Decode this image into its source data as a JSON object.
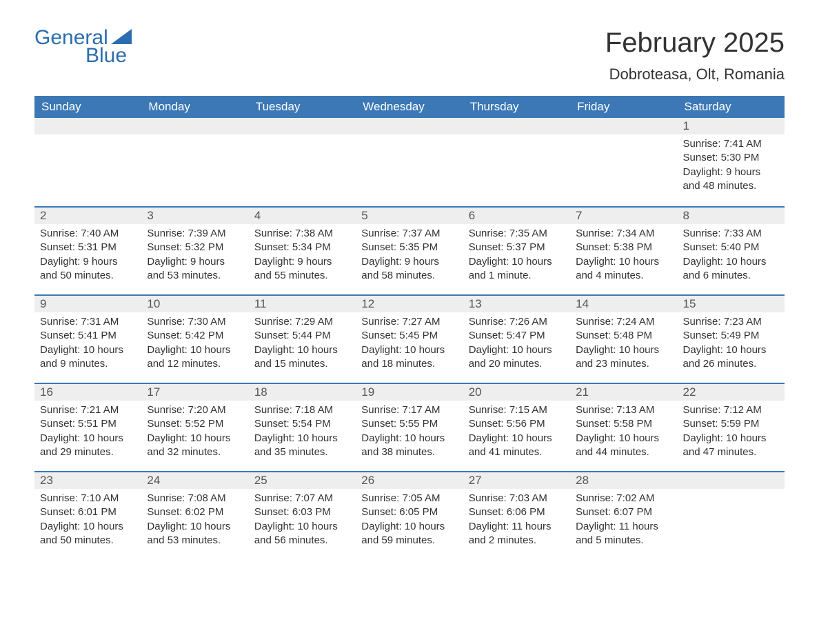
{
  "logo": {
    "word1": "General",
    "word2": "Blue",
    "brand_color": "#2a6db0"
  },
  "title": "February 2025",
  "location": "Dobroteasa, Olt, Romania",
  "colors": {
    "header_bg": "#3b78b5",
    "header_text": "#ffffff",
    "daynum_bg": "#eeeeee",
    "row_rule": "#3b78b5",
    "text": "#333333",
    "background": "#ffffff"
  },
  "weekdays": [
    "Sunday",
    "Monday",
    "Tuesday",
    "Wednesday",
    "Thursday",
    "Friday",
    "Saturday"
  ],
  "weeks": [
    [
      null,
      null,
      null,
      null,
      null,
      null,
      {
        "n": "1",
        "sunrise": "Sunrise: 7:41 AM",
        "sunset": "Sunset: 5:30 PM",
        "daylight1": "Daylight: 9 hours",
        "daylight2": "and 48 minutes."
      }
    ],
    [
      {
        "n": "2",
        "sunrise": "Sunrise: 7:40 AM",
        "sunset": "Sunset: 5:31 PM",
        "daylight1": "Daylight: 9 hours",
        "daylight2": "and 50 minutes."
      },
      {
        "n": "3",
        "sunrise": "Sunrise: 7:39 AM",
        "sunset": "Sunset: 5:32 PM",
        "daylight1": "Daylight: 9 hours",
        "daylight2": "and 53 minutes."
      },
      {
        "n": "4",
        "sunrise": "Sunrise: 7:38 AM",
        "sunset": "Sunset: 5:34 PM",
        "daylight1": "Daylight: 9 hours",
        "daylight2": "and 55 minutes."
      },
      {
        "n": "5",
        "sunrise": "Sunrise: 7:37 AM",
        "sunset": "Sunset: 5:35 PM",
        "daylight1": "Daylight: 9 hours",
        "daylight2": "and 58 minutes."
      },
      {
        "n": "6",
        "sunrise": "Sunrise: 7:35 AM",
        "sunset": "Sunset: 5:37 PM",
        "daylight1": "Daylight: 10 hours",
        "daylight2": "and 1 minute."
      },
      {
        "n": "7",
        "sunrise": "Sunrise: 7:34 AM",
        "sunset": "Sunset: 5:38 PM",
        "daylight1": "Daylight: 10 hours",
        "daylight2": "and 4 minutes."
      },
      {
        "n": "8",
        "sunrise": "Sunrise: 7:33 AM",
        "sunset": "Sunset: 5:40 PM",
        "daylight1": "Daylight: 10 hours",
        "daylight2": "and 6 minutes."
      }
    ],
    [
      {
        "n": "9",
        "sunrise": "Sunrise: 7:31 AM",
        "sunset": "Sunset: 5:41 PM",
        "daylight1": "Daylight: 10 hours",
        "daylight2": "and 9 minutes."
      },
      {
        "n": "10",
        "sunrise": "Sunrise: 7:30 AM",
        "sunset": "Sunset: 5:42 PM",
        "daylight1": "Daylight: 10 hours",
        "daylight2": "and 12 minutes."
      },
      {
        "n": "11",
        "sunrise": "Sunrise: 7:29 AM",
        "sunset": "Sunset: 5:44 PM",
        "daylight1": "Daylight: 10 hours",
        "daylight2": "and 15 minutes."
      },
      {
        "n": "12",
        "sunrise": "Sunrise: 7:27 AM",
        "sunset": "Sunset: 5:45 PM",
        "daylight1": "Daylight: 10 hours",
        "daylight2": "and 18 minutes."
      },
      {
        "n": "13",
        "sunrise": "Sunrise: 7:26 AM",
        "sunset": "Sunset: 5:47 PM",
        "daylight1": "Daylight: 10 hours",
        "daylight2": "and 20 minutes."
      },
      {
        "n": "14",
        "sunrise": "Sunrise: 7:24 AM",
        "sunset": "Sunset: 5:48 PM",
        "daylight1": "Daylight: 10 hours",
        "daylight2": "and 23 minutes."
      },
      {
        "n": "15",
        "sunrise": "Sunrise: 7:23 AM",
        "sunset": "Sunset: 5:49 PM",
        "daylight1": "Daylight: 10 hours",
        "daylight2": "and 26 minutes."
      }
    ],
    [
      {
        "n": "16",
        "sunrise": "Sunrise: 7:21 AM",
        "sunset": "Sunset: 5:51 PM",
        "daylight1": "Daylight: 10 hours",
        "daylight2": "and 29 minutes."
      },
      {
        "n": "17",
        "sunrise": "Sunrise: 7:20 AM",
        "sunset": "Sunset: 5:52 PM",
        "daylight1": "Daylight: 10 hours",
        "daylight2": "and 32 minutes."
      },
      {
        "n": "18",
        "sunrise": "Sunrise: 7:18 AM",
        "sunset": "Sunset: 5:54 PM",
        "daylight1": "Daylight: 10 hours",
        "daylight2": "and 35 minutes."
      },
      {
        "n": "19",
        "sunrise": "Sunrise: 7:17 AM",
        "sunset": "Sunset: 5:55 PM",
        "daylight1": "Daylight: 10 hours",
        "daylight2": "and 38 minutes."
      },
      {
        "n": "20",
        "sunrise": "Sunrise: 7:15 AM",
        "sunset": "Sunset: 5:56 PM",
        "daylight1": "Daylight: 10 hours",
        "daylight2": "and 41 minutes."
      },
      {
        "n": "21",
        "sunrise": "Sunrise: 7:13 AM",
        "sunset": "Sunset: 5:58 PM",
        "daylight1": "Daylight: 10 hours",
        "daylight2": "and 44 minutes."
      },
      {
        "n": "22",
        "sunrise": "Sunrise: 7:12 AM",
        "sunset": "Sunset: 5:59 PM",
        "daylight1": "Daylight: 10 hours",
        "daylight2": "and 47 minutes."
      }
    ],
    [
      {
        "n": "23",
        "sunrise": "Sunrise: 7:10 AM",
        "sunset": "Sunset: 6:01 PM",
        "daylight1": "Daylight: 10 hours",
        "daylight2": "and 50 minutes."
      },
      {
        "n": "24",
        "sunrise": "Sunrise: 7:08 AM",
        "sunset": "Sunset: 6:02 PM",
        "daylight1": "Daylight: 10 hours",
        "daylight2": "and 53 minutes."
      },
      {
        "n": "25",
        "sunrise": "Sunrise: 7:07 AM",
        "sunset": "Sunset: 6:03 PM",
        "daylight1": "Daylight: 10 hours",
        "daylight2": "and 56 minutes."
      },
      {
        "n": "26",
        "sunrise": "Sunrise: 7:05 AM",
        "sunset": "Sunset: 6:05 PM",
        "daylight1": "Daylight: 10 hours",
        "daylight2": "and 59 minutes."
      },
      {
        "n": "27",
        "sunrise": "Sunrise: 7:03 AM",
        "sunset": "Sunset: 6:06 PM",
        "daylight1": "Daylight: 11 hours",
        "daylight2": "and 2 minutes."
      },
      {
        "n": "28",
        "sunrise": "Sunrise: 7:02 AM",
        "sunset": "Sunset: 6:07 PM",
        "daylight1": "Daylight: 11 hours",
        "daylight2": "and 5 minutes."
      },
      null
    ]
  ]
}
